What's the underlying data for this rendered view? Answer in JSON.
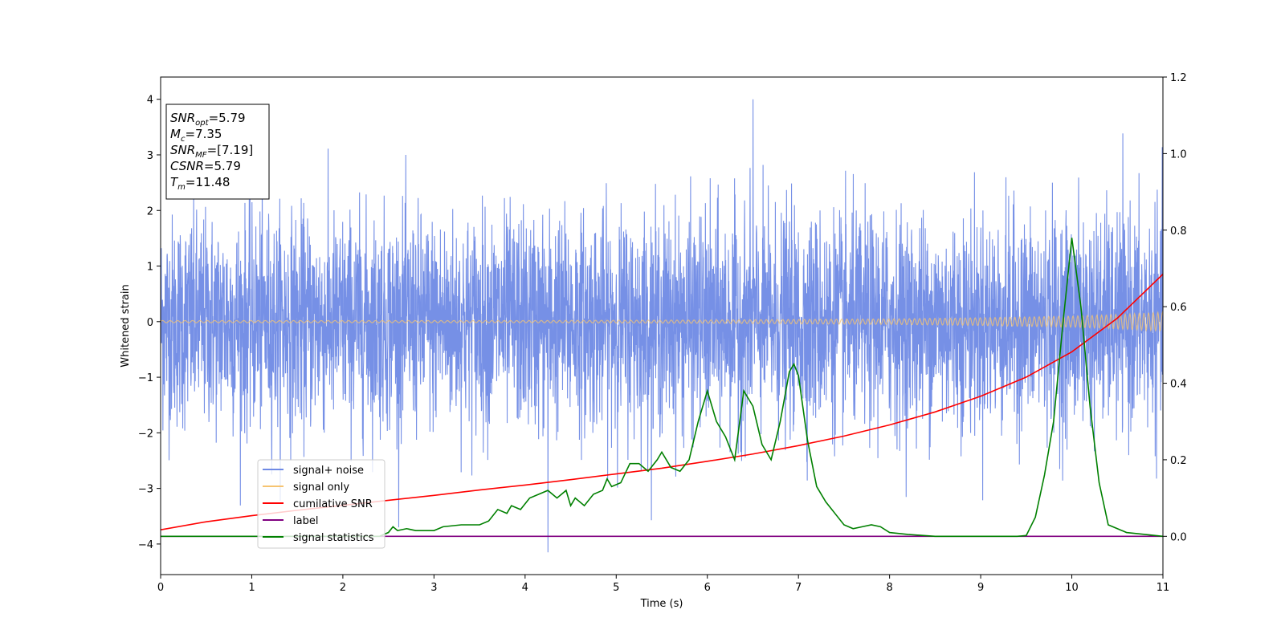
{
  "chart_data": {
    "type": "line",
    "xlabel": "Time (s)",
    "ylabel": "Whitened strain",
    "xlim": [
      0,
      11
    ],
    "ylim": [
      -4.55,
      4.4
    ],
    "y2lim": [
      -0.1,
      1.2
    ],
    "x_ticks": [
      0,
      1,
      2,
      3,
      4,
      5,
      6,
      7,
      8,
      9,
      10,
      11
    ],
    "y_ticks": [
      -4,
      -3,
      -2,
      -1,
      0,
      1,
      2,
      3,
      4
    ],
    "y_tick_labels": [
      "−4",
      "−3",
      "−2",
      "−1",
      "0",
      "1",
      "2",
      "3",
      "4"
    ],
    "y2_ticks": [
      0.0,
      0.2,
      0.4,
      0.6,
      0.8,
      1.0,
      1.2
    ],
    "y2_tick_labels": [
      "0.0",
      "0.2",
      "0.4",
      "0.6",
      "0.8",
      "1.0",
      "1.2"
    ],
    "legend": {
      "placement": "lower-left",
      "entries": [
        {
          "label": "signal+ noise",
          "color": "#6f8ae5"
        },
        {
          "label": "signal only",
          "color": "#f6c471"
        },
        {
          "label": "cumilative SNR",
          "color": "#ff0000"
        },
        {
          "label": "label",
          "color": "#800080"
        },
        {
          "label": "signal statistics",
          "color": "#008000"
        }
      ]
    },
    "annotation": {
      "placement": "top-left",
      "lines": [
        {
          "base": "SNR",
          "sub": "opt",
          "value": "=5.79"
        },
        {
          "base": "M",
          "sub": "c",
          "value": "=7.35"
        },
        {
          "base": "SNR",
          "sub": "MF",
          "value": "=[7.19]"
        },
        {
          "base": "CSNR",
          "sub": "",
          "value": "=5.79"
        },
        {
          "base": "T",
          "sub": "m",
          "value": "=11.48"
        }
      ]
    },
    "series": [
      {
        "name": "signal+ noise",
        "axis": "left",
        "color": "#6f8ae5",
        "kind": "noise",
        "sigma": 1.0,
        "max": 4.0,
        "min": -4.15
      },
      {
        "name": "signal only",
        "axis": "left",
        "color": "#f6c471",
        "kind": "chirp",
        "envelope_x": [
          0,
          2,
          4,
          6,
          8,
          9,
          10,
          10.5,
          11
        ],
        "envelope_y": [
          0.02,
          0.02,
          0.02,
          0.03,
          0.05,
          0.07,
          0.1,
          0.13,
          0.17
        ]
      },
      {
        "name": "cumilative SNR",
        "axis": "right",
        "color": "#ff0000",
        "x": [
          0,
          0.5,
          1,
          1.5,
          2,
          2.5,
          3,
          3.5,
          4,
          4.5,
          5,
          5.5,
          6,
          6.5,
          7,
          7.5,
          8,
          8.5,
          9,
          9.5,
          10,
          10.5,
          11
        ],
        "values": [
          0.017,
          0.038,
          0.054,
          0.068,
          0.081,
          0.094,
          0.107,
          0.121,
          0.134,
          0.148,
          0.163,
          0.178,
          0.196,
          0.215,
          0.237,
          0.262,
          0.291,
          0.325,
          0.366,
          0.416,
          0.482,
          0.57,
          0.685
        ]
      },
      {
        "name": "label",
        "axis": "right",
        "color": "#800080",
        "x": [
          0,
          11
        ],
        "values": [
          0.0,
          0.0
        ]
      },
      {
        "name": "signal statistics",
        "axis": "right",
        "color": "#008000",
        "x": [
          0,
          2.4,
          2.5,
          2.55,
          2.6,
          2.7,
          2.8,
          3.0,
          3.1,
          3.3,
          3.5,
          3.6,
          3.7,
          3.8,
          3.85,
          3.95,
          4.05,
          4.15,
          4.25,
          4.35,
          4.45,
          4.5,
          4.55,
          4.65,
          4.75,
          4.85,
          4.9,
          4.95,
          5.05,
          5.15,
          5.25,
          5.35,
          5.45,
          5.5,
          5.6,
          5.7,
          5.8,
          5.9,
          6.0,
          6.1,
          6.2,
          6.3,
          6.4,
          6.5,
          6.6,
          6.7,
          6.8,
          6.9,
          6.95,
          7.0,
          7.1,
          7.2,
          7.3,
          7.4,
          7.5,
          7.6,
          7.7,
          7.8,
          7.9,
          8.0,
          8.2,
          8.5,
          9.0,
          9.4,
          9.5,
          9.6,
          9.7,
          9.8,
          9.9,
          10.0,
          10.1,
          10.2,
          10.3,
          10.4,
          10.5,
          10.6,
          10.8,
          11.0
        ],
        "values": [
          0.0,
          0.0,
          0.01,
          0.025,
          0.015,
          0.02,
          0.015,
          0.015,
          0.025,
          0.03,
          0.03,
          0.04,
          0.07,
          0.06,
          0.08,
          0.07,
          0.1,
          0.11,
          0.12,
          0.1,
          0.12,
          0.08,
          0.1,
          0.08,
          0.11,
          0.12,
          0.15,
          0.13,
          0.14,
          0.19,
          0.19,
          0.17,
          0.2,
          0.22,
          0.18,
          0.17,
          0.2,
          0.3,
          0.38,
          0.3,
          0.26,
          0.2,
          0.38,
          0.34,
          0.24,
          0.2,
          0.3,
          0.43,
          0.45,
          0.42,
          0.25,
          0.13,
          0.09,
          0.06,
          0.03,
          0.02,
          0.025,
          0.03,
          0.025,
          0.01,
          0.005,
          0.0,
          0.0,
          0.0,
          0.002,
          0.05,
          0.16,
          0.3,
          0.55,
          0.78,
          0.6,
          0.34,
          0.14,
          0.03,
          0.02,
          0.01,
          0.005,
          0.0
        ]
      }
    ]
  }
}
